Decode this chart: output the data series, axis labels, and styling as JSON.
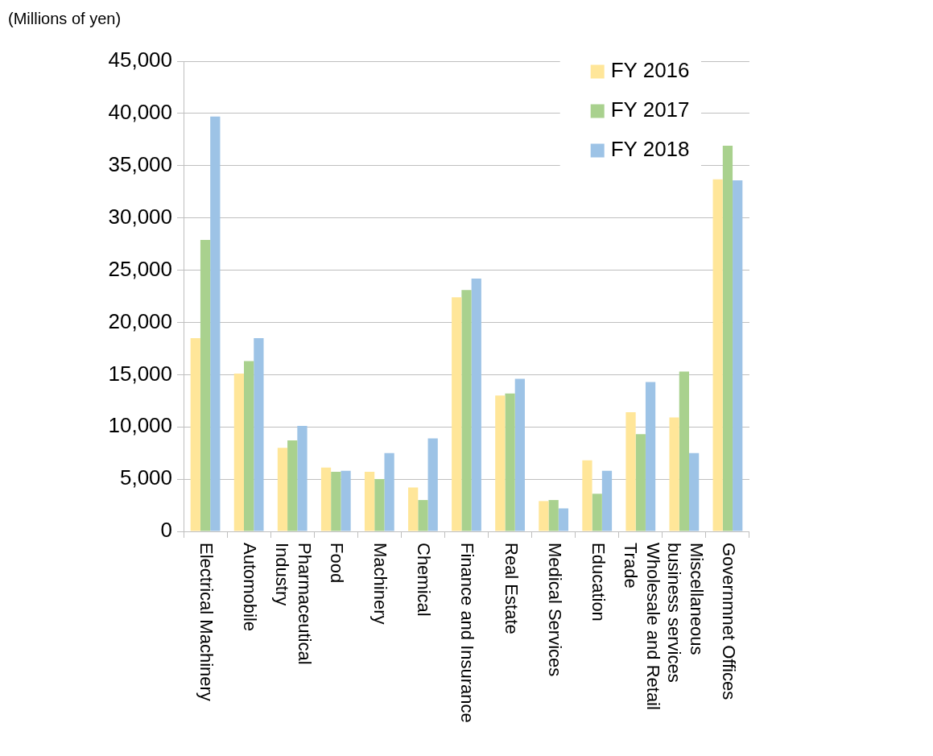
{
  "chart_data": {
    "type": "bar",
    "ylabel": "(Millions of yen)",
    "categories": [
      "Electrical Machinery",
      "Automobile",
      "Pharmaceutical Industry",
      "Food",
      "Machinery",
      "Chemical",
      "Finance and Insurance",
      "Real Estate",
      "Medical Services",
      "Education",
      "Wholesale and Retail Trade",
      "Miscellaneous business services",
      "Governmnet Offices"
    ],
    "series": [
      {
        "name": "FY 2016",
        "color": "#ffe699",
        "values": [
          18500,
          15100,
          8000,
          6100,
          5700,
          4200,
          22400,
          13000,
          2900,
          6800,
          11400,
          10900,
          33700
        ]
      },
      {
        "name": "FY 2017",
        "color": "#a9d18e",
        "values": [
          27900,
          16300,
          8700,
          5700,
          5000,
          3000,
          23100,
          13200,
          3000,
          3600,
          9300,
          15300,
          36900
        ]
      },
      {
        "name": "FY 2018",
        "color": "#9dc3e6",
        "values": [
          39700,
          18500,
          10100,
          5800,
          7500,
          8900,
          24200,
          14600,
          2200,
          5800,
          14300,
          7500,
          33600
        ]
      }
    ],
    "ylim": [
      0,
      45000
    ],
    "yticks": [
      0,
      {
        "value": 5000,
        "label": "5,000"
      },
      {
        "value": 10000,
        "label": "10,000"
      },
      {
        "value": 15000,
        "label": "15,000"
      },
      {
        "value": 20000,
        "label": "20,000"
      },
      {
        "value": 25000,
        "label": "25,000"
      },
      {
        "value": 30000,
        "label": "30,000"
      },
      {
        "value": 35000,
        "label": "35,000"
      },
      {
        "value": 40000,
        "label": "40,000"
      },
      {
        "value": 45000,
        "label": "45,000"
      }
    ],
    "grid": "y",
    "legend": "top right"
  }
}
